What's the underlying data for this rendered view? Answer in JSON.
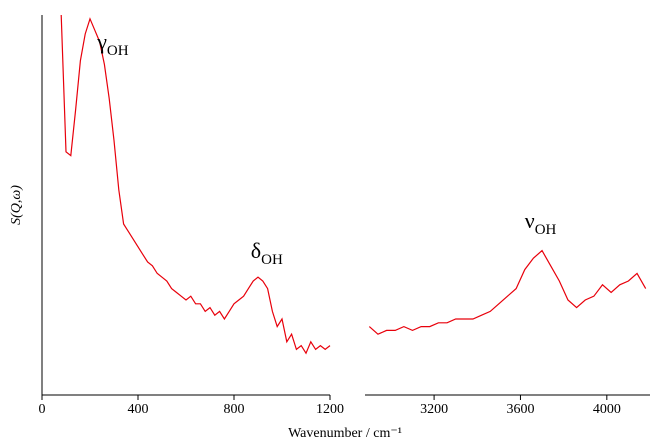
{
  "chart_data": [
    {
      "type": "line",
      "ylabel": "S(Q,ω)",
      "xlabel": "Wavenumber / cm⁻¹",
      "x": [
        80,
        100,
        120,
        140,
        160,
        180,
        200,
        220,
        240,
        260,
        280,
        300,
        320,
        340,
        360,
        380,
        400,
        420,
        440,
        460,
        480,
        500,
        520,
        540,
        560,
        580,
        600,
        620,
        640,
        660,
        680,
        700,
        720,
        740,
        760,
        780,
        800,
        820,
        840,
        860,
        880,
        900,
        920,
        940,
        960,
        980,
        1000,
        1020,
        1040,
        1060,
        1080,
        1100,
        1120,
        1140,
        1160,
        1180,
        1200
      ],
      "series": [
        {
          "color": "#e8000b",
          "values": [
            100,
            64,
            63,
            75,
            88,
            95,
            99,
            96,
            93,
            87,
            78,
            67,
            54,
            45,
            43,
            41,
            39,
            37,
            35,
            34,
            32,
            31,
            30,
            28,
            27,
            26,
            25,
            26,
            24,
            24,
            22,
            23,
            21,
            22,
            20,
            22,
            24,
            25,
            26,
            28,
            30,
            31,
            30,
            28,
            22,
            18,
            20,
            14,
            16,
            12,
            13,
            11,
            14,
            12,
            13,
            12,
            13
          ]
        }
      ],
      "xlim": [
        0,
        1200
      ],
      "xticks": [
        0,
        400,
        800,
        1200
      ],
      "ylim": [
        0,
        100
      ],
      "annotations": [
        {
          "text": "γ",
          "sub": "OH",
          "x": 230,
          "y": 91
        },
        {
          "text": "δ",
          "sub": "OH",
          "x": 870,
          "y": 36
        }
      ]
    },
    {
      "type": "line",
      "x": [
        2900,
        2940,
        2980,
        3020,
        3060,
        3100,
        3140,
        3180,
        3220,
        3260,
        3300,
        3340,
        3380,
        3420,
        3460,
        3500,
        3540,
        3580,
        3620,
        3660,
        3700,
        3740,
        3780,
        3820,
        3860,
        3900,
        3940,
        3980,
        4020,
        4060,
        4100,
        4140,
        4180
      ],
      "series": [
        {
          "color": "#e8000b",
          "values": [
            18,
            16,
            17,
            17,
            18,
            17,
            18,
            18,
            19,
            19,
            20,
            20,
            20,
            21,
            22,
            24,
            26,
            28,
            33,
            36,
            38,
            34,
            30,
            25,
            23,
            25,
            26,
            29,
            27,
            29,
            30,
            32,
            28
          ]
        }
      ],
      "xlim": [
        2880,
        4200
      ],
      "xticks": [
        3200,
        3600,
        4000
      ],
      "ylim": [
        0,
        100
      ],
      "annotations": [
        {
          "text": "ν",
          "sub": "OH",
          "x": 3620,
          "y": 44
        }
      ]
    }
  ]
}
